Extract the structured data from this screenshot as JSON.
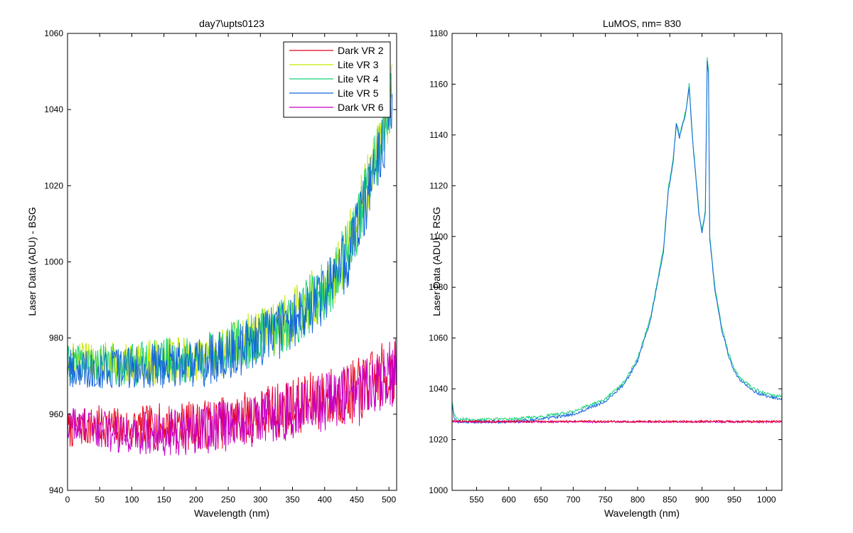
{
  "figure": {
    "background": "#ffffff"
  },
  "chart_data": [
    {
      "type": "line",
      "title": "day7\\upts0123",
      "xlabel": "Wavelength (nm)",
      "ylabel": "Laser Data (ADU) - BSG",
      "xlim": [
        0,
        512
      ],
      "ylim": [
        940,
        1060
      ],
      "xticks": [
        0,
        50,
        100,
        150,
        200,
        250,
        300,
        350,
        400,
        450,
        500
      ],
      "yticks": [
        940,
        960,
        980,
        1000,
        1020,
        1040,
        1060
      ],
      "grid": false,
      "legend": "top-right",
      "series": [
        {
          "name": "Dark VR 2",
          "color": "#e8001c",
          "x": [
            0,
            50,
            100,
            150,
            200,
            250,
            300,
            350,
            400,
            450,
            500,
            512
          ],
          "y": [
            956,
            957,
            956,
            957,
            957,
            958,
            960,
            962,
            964,
            966,
            971,
            972
          ]
        },
        {
          "name": "Lite VR 3",
          "color": "#c8e600",
          "x": [
            0,
            50,
            100,
            150,
            200,
            250,
            300,
            350,
            400,
            420,
            440,
            460,
            480,
            500,
            505
          ],
          "y": [
            974,
            974,
            973,
            974,
            974,
            977,
            981,
            986,
            993,
            998,
            1006,
            1016,
            1028,
            1040,
            1043
          ]
        },
        {
          "name": "Lite VR 4",
          "color": "#18d27a",
          "x": [
            0,
            50,
            100,
            150,
            200,
            250,
            300,
            350,
            400,
            420,
            440,
            460,
            480,
            500,
            505
          ],
          "y": [
            973,
            973,
            973,
            974,
            974,
            977,
            980,
            985,
            992,
            997,
            1005,
            1015,
            1027,
            1040,
            1043
          ]
        },
        {
          "name": "Lite VR 5",
          "color": "#1464dc",
          "x": [
            0,
            50,
            100,
            150,
            200,
            250,
            300,
            350,
            400,
            420,
            440,
            460,
            480,
            500,
            505
          ],
          "y": [
            972,
            972,
            972,
            973,
            973,
            976,
            979,
            984,
            991,
            996,
            1003,
            1013,
            1025,
            1038,
            1041
          ]
        },
        {
          "name": "Dark VR 6",
          "color": "#c800c8",
          "x": [
            0,
            50,
            100,
            150,
            200,
            250,
            300,
            350,
            400,
            450,
            500,
            512
          ],
          "y": [
            958,
            956,
            955,
            955,
            956,
            957,
            959,
            961,
            963,
            965,
            970,
            972
          ]
        }
      ]
    },
    {
      "type": "line",
      "title": "LuMOS, nm= 830",
      "xlabel": "Wavelength (nm)",
      "ylabel": "Laser Data (ADU) - RSG",
      "xlim": [
        512,
        1024
      ],
      "ylim": [
        1000,
        1180
      ],
      "xticks": [
        550,
        600,
        650,
        700,
        750,
        800,
        850,
        900,
        950,
        1000
      ],
      "yticks": [
        1000,
        1020,
        1040,
        1060,
        1080,
        1100,
        1120,
        1140,
        1160,
        1180
      ],
      "grid": false,
      "series": [
        {
          "color": "#18d27a",
          "x": [
            512,
            515,
            520,
            530,
            600,
            650,
            700,
            750,
            780,
            800,
            820,
            840,
            848,
            850,
            855,
            860,
            865,
            870,
            875,
            880,
            885,
            890,
            895,
            900,
            905,
            908,
            910,
            912,
            920,
            930,
            940,
            950,
            960,
            980,
            1000,
            1024
          ],
          "y": [
            1035,
            1030,
            1028,
            1028,
            1028,
            1029,
            1031,
            1036,
            1043,
            1052,
            1068,
            1095,
            1120,
            1122,
            1130,
            1145,
            1140,
            1145,
            1150,
            1160,
            1140,
            1125,
            1110,
            1102,
            1110,
            1170,
            1165,
            1100,
            1080,
            1065,
            1055,
            1048,
            1044,
            1040,
            1038,
            1037
          ]
        },
        {
          "color": "#1464dc",
          "x": [
            512,
            515,
            520,
            530,
            600,
            650,
            700,
            750,
            780,
            800,
            820,
            840,
            848,
            850,
            855,
            860,
            865,
            870,
            875,
            880,
            885,
            890,
            895,
            900,
            905,
            908,
            910,
            912,
            920,
            930,
            940,
            950,
            960,
            980,
            1000,
            1024
          ],
          "y": [
            1034,
            1029,
            1027,
            1027,
            1027,
            1028,
            1030,
            1035,
            1042,
            1051,
            1067,
            1094,
            1119,
            1121,
            1129,
            1144,
            1139,
            1144,
            1149,
            1159,
            1139,
            1124,
            1109,
            1101,
            1109,
            1169,
            1164,
            1099,
            1079,
            1064,
            1054,
            1047,
            1043,
            1039,
            1037,
            1036
          ]
        },
        {
          "color": "#c800c8",
          "x": [
            512,
            520,
            600,
            700,
            800,
            900,
            1000,
            1024
          ],
          "y": [
            1027.5,
            1027,
            1027,
            1027,
            1027,
            1027,
            1027,
            1027
          ]
        },
        {
          "color": "#e8001c",
          "x": [
            512,
            520,
            600,
            700,
            800,
            900,
            1000,
            1024
          ],
          "y": [
            1027.3,
            1027.2,
            1027.1,
            1027.2,
            1027.1,
            1027.2,
            1027.1,
            1027.2
          ]
        }
      ]
    }
  ]
}
